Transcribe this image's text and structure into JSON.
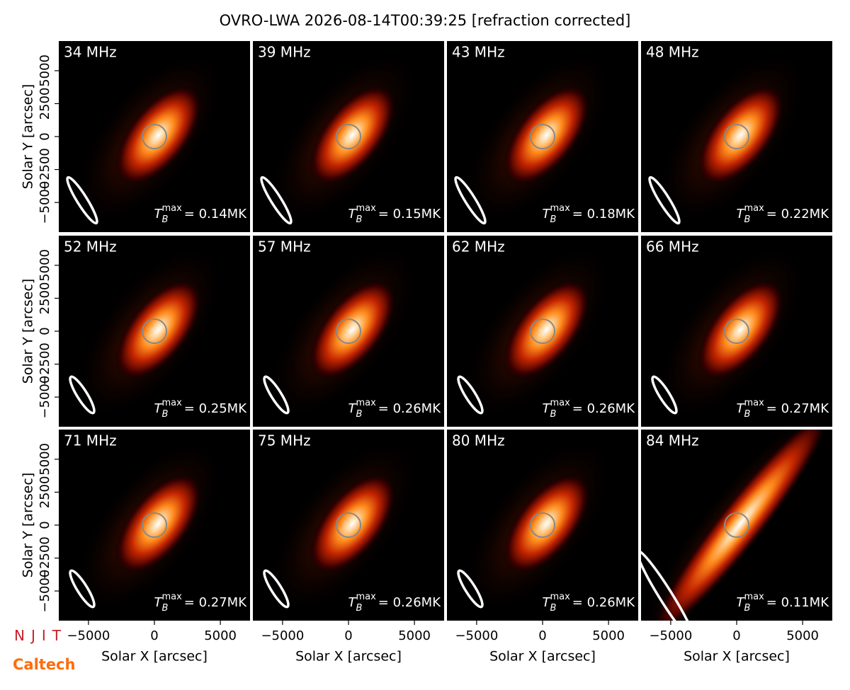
{
  "title": "OVRO-LWA 2026-08-14T00:39:25 [refraction corrected]",
  "logos": [
    "NJIT",
    "Caltech"
  ],
  "chart_data": [
    {
      "type": "image",
      "title": "34 MHz",
      "annotation": {
        "symbol": "T",
        "subscript": "B",
        "superscript": "max",
        "text": "= 0.14MK"
      },
      "xlim": [
        -7250,
        7250
      ],
      "ylim": [
        -7250,
        7250
      ],
      "ylabel": "Solar Y [arcsec]",
      "yticks": [
        {
          "value": -5000,
          "label": "−5000"
        },
        {
          "value": -2500,
          "label": "−2500"
        },
        0,
        2500,
        5000
      ]
    },
    {
      "type": "image",
      "title": "39 MHz",
      "annotation": {
        "symbol": "T",
        "subscript": "B",
        "superscript": "max",
        "text": "= 0.15MK"
      },
      "xlim": [
        -7250,
        7250
      ],
      "ylim": [
        -7250,
        7250
      ]
    },
    {
      "type": "image",
      "title": "43 MHz",
      "annotation": {
        "symbol": "T",
        "subscript": "B",
        "superscript": "max",
        "text": "= 0.18MK"
      },
      "xlim": [
        -7250,
        7250
      ],
      "ylim": [
        -7250,
        7250
      ]
    },
    {
      "type": "image",
      "title": "48 MHz",
      "annotation": {
        "symbol": "T",
        "subscript": "B",
        "superscript": "max",
        "text": "= 0.22MK"
      },
      "xlim": [
        -7250,
        7250
      ],
      "ylim": [
        -7250,
        7250
      ]
    },
    {
      "type": "image",
      "title": "52 MHz",
      "annotation": {
        "symbol": "T",
        "subscript": "B",
        "superscript": "max",
        "text": "= 0.25MK"
      },
      "xlim": [
        -7250,
        7250
      ],
      "ylim": [
        -7250,
        7250
      ],
      "ylabel": "Solar Y [arcsec]",
      "yticks": [
        {
          "value": -5000,
          "label": "−5000"
        },
        {
          "value": -2500,
          "label": "−2500"
        },
        0,
        2500,
        5000
      ]
    },
    {
      "type": "image",
      "title": "57 MHz",
      "annotation": {
        "symbol": "T",
        "subscript": "B",
        "superscript": "max",
        "text": "= 0.26MK"
      },
      "xlim": [
        -7250,
        7250
      ],
      "ylim": [
        -7250,
        7250
      ]
    },
    {
      "type": "image",
      "title": "62 MHz",
      "annotation": {
        "symbol": "T",
        "subscript": "B",
        "superscript": "max",
        "text": "= 0.26MK"
      },
      "xlim": [
        -7250,
        7250
      ],
      "ylim": [
        -7250,
        7250
      ]
    },
    {
      "type": "image",
      "title": "66 MHz",
      "annotation": {
        "symbol": "T",
        "subscript": "B",
        "superscript": "max",
        "text": "= 0.27MK"
      },
      "xlim": [
        -7250,
        7250
      ],
      "ylim": [
        -7250,
        7250
      ]
    },
    {
      "type": "image",
      "title": "71 MHz",
      "annotation": {
        "symbol": "T",
        "subscript": "B",
        "superscript": "max",
        "text": "= 0.27MK"
      },
      "xlim": [
        -7250,
        7250
      ],
      "ylim": [
        -7250,
        7250
      ],
      "ylabel": "Solar Y [arcsec]",
      "yticks": [
        {
          "value": -5000,
          "label": "−5000"
        },
        {
          "value": -2500,
          "label": "−2500"
        },
        0,
        2500,
        5000
      ],
      "xlabel": "Solar X [arcsec]",
      "xticks": [
        {
          "value": -5000,
          "label": "−5000"
        },
        0,
        5000
      ]
    },
    {
      "type": "image",
      "title": "75 MHz",
      "annotation": {
        "symbol": "T",
        "subscript": "B",
        "superscript": "max",
        "text": "= 0.26MK"
      },
      "xlim": [
        -7250,
        7250
      ],
      "ylim": [
        -7250,
        7250
      ],
      "xlabel": "Solar X [arcsec]",
      "xticks": [
        {
          "value": -5000,
          "label": "−5000"
        },
        0,
        5000
      ]
    },
    {
      "type": "image",
      "title": "80 MHz",
      "annotation": {
        "symbol": "T",
        "subscript": "B",
        "superscript": "max",
        "text": "= 0.26MK"
      },
      "xlim": [
        -7250,
        7250
      ],
      "ylim": [
        -7250,
        7250
      ],
      "xlabel": "Solar X [arcsec]",
      "xticks": [
        {
          "value": -5000,
          "label": "−5000"
        },
        0,
        5000
      ]
    },
    {
      "type": "image",
      "title": "84 MHz",
      "annotation": {
        "symbol": "T",
        "subscript": "B",
        "superscript": "max",
        "text": "= 0.11MK"
      },
      "xlim": [
        -7250,
        7250
      ],
      "ylim": [
        -7250,
        7250
      ],
      "xlabel": "Solar X [arcsec]",
      "xticks": [
        {
          "value": -5000,
          "label": "−5000"
        },
        0,
        5000
      ]
    }
  ]
}
